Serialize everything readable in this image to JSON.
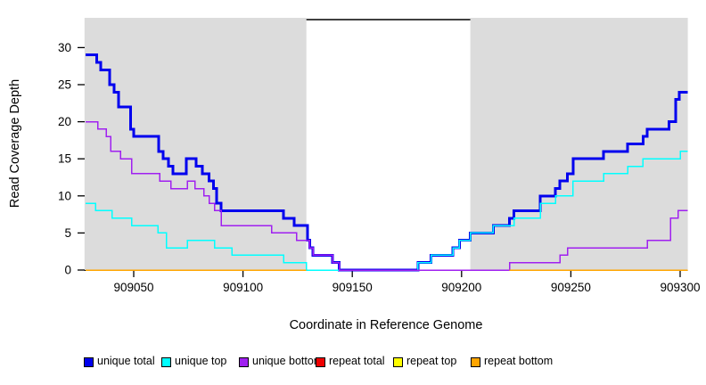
{
  "chart_data": {
    "type": "step-line",
    "title": "",
    "xlabel": "Coordinate in Reference Genome",
    "ylabel": "Read Coverage Depth",
    "x_ticks": [
      909050,
      909100,
      909150,
      909200,
      909250,
      909300
    ],
    "y_ticks": [
      0,
      5,
      10,
      15,
      20,
      25,
      30
    ],
    "x_range": [
      909027.5,
      909303.5
    ],
    "y_range": [
      0,
      34
    ],
    "grid": false,
    "shaded_regions": {
      "color": "#DCDCDC",
      "note": "repeat-masked regions shading",
      "ranges": [
        [
          909027.5,
          909129
        ],
        [
          909204,
          909303.5
        ]
      ]
    },
    "annotation_line": {
      "note": "black bar spanning the unshaded gap at top of plot",
      "from": 909129,
      "to": 909204
    },
    "series": [
      {
        "name": "unique total",
        "color": "#0000EE",
        "width": 3,
        "segments": [
          [
            [
              909028,
              29
            ],
            [
              909033,
              28
            ],
            [
              909035,
              27
            ],
            [
              909039,
              25
            ],
            [
              909041,
              24
            ],
            [
              909043,
              22
            ],
            [
              909048.5,
              19
            ],
            [
              909050,
              18
            ],
            [
              909061.5,
              16
            ],
            [
              909063.5,
              15
            ],
            [
              909066,
              14
            ],
            [
              909068,
              13
            ],
            [
              909074,
              15
            ],
            [
              909078.5,
              14
            ],
            [
              909081.5,
              13
            ],
            [
              909084.5,
              12
            ],
            [
              909086.5,
              11
            ],
            [
              909088,
              9
            ],
            [
              909090,
              8
            ],
            [
              909118.5,
              7
            ],
            [
              909123.5,
              6
            ],
            [
              909129.5,
              4
            ],
            [
              909130.5,
              3
            ],
            [
              909132,
              2
            ],
            [
              909141,
              1
            ],
            [
              909144,
              0
            ],
            [
              909180,
              1
            ],
            [
              909186,
              2
            ],
            [
              909196,
              3
            ],
            [
              909199,
              4
            ],
            [
              909204,
              5
            ],
            [
              909214.5,
              6
            ],
            [
              909222,
              7
            ],
            [
              909224,
              8
            ],
            [
              909236,
              10
            ],
            [
              909243,
              11
            ],
            [
              909245,
              12
            ],
            [
              909248.5,
              13
            ],
            [
              909251,
              15
            ],
            [
              909265,
              16
            ],
            [
              909276,
              17
            ],
            [
              909283,
              18
            ],
            [
              909285,
              19
            ],
            [
              909295,
              20
            ],
            [
              909298,
              23
            ],
            [
              909299.5,
              24
            ],
            [
              909303.5,
              24
            ]
          ]
        ]
      },
      {
        "name": "unique top",
        "color": "#00FFFF",
        "width": 1.5,
        "segments": [
          [
            [
              909028,
              9
            ],
            [
              909032.5,
              8
            ],
            [
              909040,
              7
            ],
            [
              909049,
              6
            ],
            [
              909061,
              5
            ],
            [
              909065,
              3
            ],
            [
              909074.5,
              4
            ],
            [
              909087,
              3
            ],
            [
              909095,
              2
            ],
            [
              909118.5,
              1
            ],
            [
              909129,
              0
            ],
            [
              909180,
              1
            ],
            [
              909186,
              2
            ],
            [
              909196,
              3
            ],
            [
              909199,
              4
            ],
            [
              909204,
              5
            ],
            [
              909214.5,
              6
            ],
            [
              909224,
              7
            ],
            [
              909236,
              9
            ],
            [
              909243,
              10
            ],
            [
              909251,
              12
            ],
            [
              909265,
              13
            ],
            [
              909276,
              14
            ],
            [
              909283,
              15
            ],
            [
              909300,
              16
            ],
            [
              909303.5,
              16
            ]
          ]
        ]
      },
      {
        "name": "unique bottom",
        "color": "#A020F0",
        "width": 1.5,
        "segments": [
          [
            [
              909028,
              20
            ],
            [
              909033.5,
              19
            ],
            [
              909037.5,
              18
            ],
            [
              909039.5,
              16
            ],
            [
              909044,
              15
            ],
            [
              909049,
              13
            ],
            [
              909062,
              12
            ],
            [
              909067,
              11
            ],
            [
              909074.5,
              12
            ],
            [
              909078,
              11
            ],
            [
              909082,
              10
            ],
            [
              909084.5,
              9
            ],
            [
              909087,
              8
            ],
            [
              909090,
              6
            ],
            [
              909113,
              5
            ],
            [
              909124.5,
              4
            ],
            [
              909130.5,
              3
            ],
            [
              909132,
              2
            ],
            [
              909141,
              1
            ],
            [
              909144,
              0
            ],
            [
              909222,
              1
            ],
            [
              909245,
              2
            ],
            [
              909248.5,
              3
            ],
            [
              909285,
              4
            ],
            [
              909295.5,
              7
            ],
            [
              909299,
              8
            ],
            [
              909303.5,
              8
            ]
          ]
        ]
      },
      {
        "name": "repeat total",
        "color": "#EE0000",
        "width": 1.5,
        "segments": [
          [
            [
              909028,
              0
            ],
            [
              909129,
              0
            ]
          ],
          [
            [
              909222,
              0
            ],
            [
              909303.5,
              0
            ]
          ]
        ]
      },
      {
        "name": "repeat top",
        "color": "#FFFF00",
        "width": 1.5,
        "segments": [
          [
            [
              909028,
              0
            ],
            [
              909129,
              0
            ]
          ],
          [
            [
              909222,
              0
            ],
            [
              909303.5,
              0
            ]
          ]
        ]
      },
      {
        "name": "repeat bottom",
        "color": "#FFA500",
        "width": 1.5,
        "segments": [
          [
            [
              909028,
              0
            ],
            [
              909129,
              0
            ]
          ],
          [
            [
              909222,
              0
            ],
            [
              909303.5,
              0
            ]
          ]
        ]
      }
    ],
    "legend": {
      "position": "bottom",
      "items": [
        {
          "label": "unique total",
          "color": "#0000EE"
        },
        {
          "label": "unique top",
          "color": "#00FFFF"
        },
        {
          "label": "unique bottom",
          "color": "#A020F0"
        },
        {
          "label": "repeat total",
          "color": "#EE0000"
        },
        {
          "label": "repeat top",
          "color": "#FFFF00"
        },
        {
          "label": "repeat bottom",
          "color": "#FFA500"
        }
      ]
    }
  }
}
